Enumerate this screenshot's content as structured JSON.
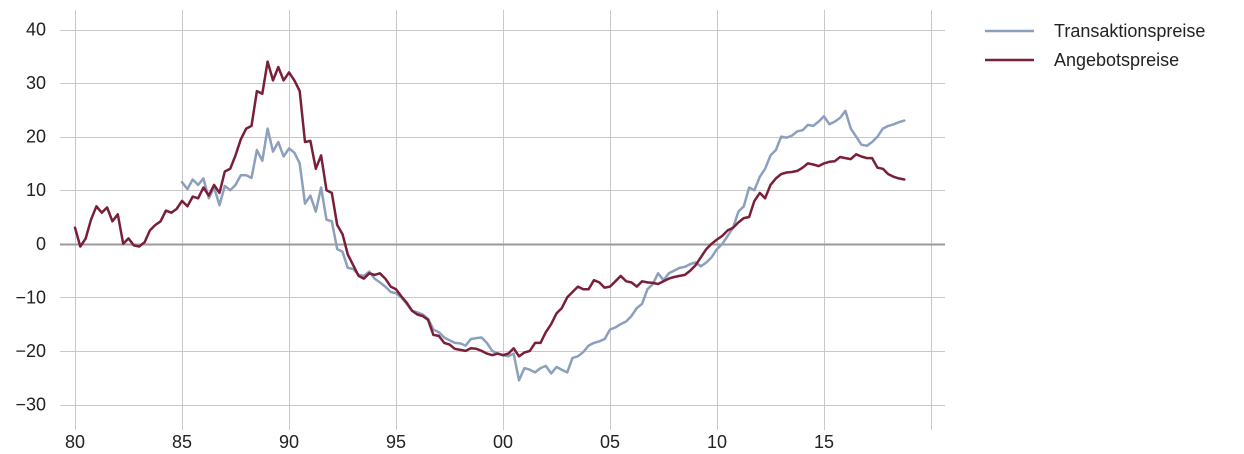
{
  "chart_data": {
    "type": "line",
    "xlabel": "",
    "ylabel": "",
    "xlim": [
      1980,
      2020
    ],
    "ylim": [
      -32,
      42
    ],
    "x_ticks": [
      1980,
      1985,
      1990,
      1995,
      2000,
      2005,
      2010,
      2015
    ],
    "x_tick_labels": [
      "80",
      "85",
      "90",
      "95",
      "00",
      "05",
      "10",
      "15"
    ],
    "y_ticks": [
      40,
      30,
      20,
      10,
      0,
      -10,
      -20,
      -30
    ],
    "y_tick_labels": [
      "40",
      "30",
      "20",
      "10",
      "0",
      "−10",
      "−20",
      "−30"
    ],
    "grid": true,
    "legend_position": "top-right",
    "series": [
      {
        "name": "Transaktionspreise",
        "color": "#8c9fbd",
        "points": [
          [
            1985.0,
            11.5
          ],
          [
            1985.25,
            10.2
          ],
          [
            1985.5,
            12.0
          ],
          [
            1985.75,
            11.0
          ],
          [
            1986.0,
            12.2
          ],
          [
            1986.25,
            8.5
          ],
          [
            1986.5,
            10.5
          ],
          [
            1986.75,
            7.2
          ],
          [
            1987.0,
            10.8
          ],
          [
            1987.25,
            10.0
          ],
          [
            1987.5,
            11.0
          ],
          [
            1987.75,
            12.8
          ],
          [
            1988.0,
            12.8
          ],
          [
            1988.25,
            12.3
          ],
          [
            1988.5,
            17.5
          ],
          [
            1988.75,
            15.5
          ],
          [
            1989.0,
            21.5
          ],
          [
            1989.25,
            17.2
          ],
          [
            1989.5,
            19.0
          ],
          [
            1989.75,
            16.3
          ],
          [
            1990.0,
            17.8
          ],
          [
            1990.25,
            17.0
          ],
          [
            1990.5,
            15.0
          ],
          [
            1990.75,
            7.5
          ],
          [
            1991.0,
            9.0
          ],
          [
            1991.25,
            6.0
          ],
          [
            1991.5,
            10.5
          ],
          [
            1991.75,
            4.5
          ],
          [
            1992.0,
            4.2
          ],
          [
            1992.25,
            -1.0
          ],
          [
            1992.5,
            -1.5
          ],
          [
            1992.75,
            -4.5
          ],
          [
            1993.0,
            -4.7
          ],
          [
            1993.25,
            -5.8
          ],
          [
            1993.5,
            -6.0
          ],
          [
            1993.75,
            -5.2
          ],
          [
            1994.0,
            -6.5
          ],
          [
            1994.25,
            -7.2
          ],
          [
            1994.5,
            -8.0
          ],
          [
            1994.75,
            -9.0
          ],
          [
            1995.0,
            -9.2
          ],
          [
            1995.25,
            -10.0
          ],
          [
            1995.5,
            -11.2
          ],
          [
            1995.75,
            -12.5
          ],
          [
            1996.0,
            -12.8
          ],
          [
            1996.25,
            -13.2
          ],
          [
            1996.5,
            -14.0
          ],
          [
            1996.75,
            -16.0
          ],
          [
            1997.0,
            -16.5
          ],
          [
            1997.25,
            -17.5
          ],
          [
            1997.5,
            -18.0
          ],
          [
            1997.75,
            -18.5
          ],
          [
            1998.0,
            -18.6
          ],
          [
            1998.25,
            -19.0
          ],
          [
            1998.5,
            -17.8
          ],
          [
            1998.75,
            -17.6
          ],
          [
            1999.0,
            -17.5
          ],
          [
            1999.25,
            -18.5
          ],
          [
            1999.5,
            -20.0
          ],
          [
            1999.75,
            -20.5
          ],
          [
            2000.0,
            -20.8
          ],
          [
            2000.25,
            -21.0
          ],
          [
            2000.5,
            -20.5
          ],
          [
            2000.75,
            -25.5
          ],
          [
            2001.0,
            -23.2
          ],
          [
            2001.25,
            -23.5
          ],
          [
            2001.5,
            -24.0
          ],
          [
            2001.75,
            -23.2
          ],
          [
            2002.0,
            -22.8
          ],
          [
            2002.25,
            -24.2
          ],
          [
            2002.5,
            -23.0
          ],
          [
            2002.75,
            -23.5
          ],
          [
            2003.0,
            -24.0
          ],
          [
            2003.25,
            -21.3
          ],
          [
            2003.5,
            -21.0
          ],
          [
            2003.75,
            -20.2
          ],
          [
            2004.0,
            -19.0
          ],
          [
            2004.25,
            -18.5
          ],
          [
            2004.5,
            -18.2
          ],
          [
            2004.75,
            -17.8
          ],
          [
            2005.0,
            -16.0
          ],
          [
            2005.25,
            -15.6
          ],
          [
            2005.5,
            -15.0
          ],
          [
            2005.75,
            -14.5
          ],
          [
            2006.0,
            -13.5
          ],
          [
            2006.25,
            -12.0
          ],
          [
            2006.5,
            -11.2
          ],
          [
            2006.75,
            -8.5
          ],
          [
            2007.0,
            -7.5
          ],
          [
            2007.25,
            -5.5
          ],
          [
            2007.5,
            -6.8
          ],
          [
            2007.75,
            -5.5
          ],
          [
            2008.0,
            -5.0
          ],
          [
            2008.25,
            -4.5
          ],
          [
            2008.5,
            -4.3
          ],
          [
            2008.75,
            -3.8
          ],
          [
            2009.0,
            -3.5
          ],
          [
            2009.25,
            -4.2
          ],
          [
            2009.5,
            -3.5
          ],
          [
            2009.75,
            -2.5
          ],
          [
            2010.0,
            -1.0
          ],
          [
            2010.25,
            0.0
          ],
          [
            2010.5,
            1.5
          ],
          [
            2010.75,
            3.0
          ],
          [
            2011.0,
            6.0
          ],
          [
            2011.25,
            7.0
          ],
          [
            2011.5,
            10.5
          ],
          [
            2011.75,
            10.0
          ],
          [
            2012.0,
            12.5
          ],
          [
            2012.25,
            14.0
          ],
          [
            2012.5,
            16.5
          ],
          [
            2012.75,
            17.5
          ],
          [
            2013.0,
            20.0
          ],
          [
            2013.25,
            19.8
          ],
          [
            2013.5,
            20.2
          ],
          [
            2013.75,
            21.0
          ],
          [
            2014.0,
            21.2
          ],
          [
            2014.25,
            22.2
          ],
          [
            2014.5,
            22.0
          ],
          [
            2014.75,
            22.8
          ],
          [
            2015.0,
            23.8
          ],
          [
            2015.25,
            22.3
          ],
          [
            2015.5,
            22.8
          ],
          [
            2015.75,
            23.5
          ],
          [
            2016.0,
            24.8
          ],
          [
            2016.25,
            21.5
          ],
          [
            2016.5,
            20.0
          ],
          [
            2016.75,
            18.5
          ],
          [
            2017.0,
            18.3
          ],
          [
            2017.25,
            19.0
          ],
          [
            2017.5,
            20.0
          ],
          [
            2017.75,
            21.5
          ],
          [
            2018.0,
            22.0
          ],
          [
            2018.25,
            22.3
          ],
          [
            2018.5,
            22.7
          ],
          [
            2018.75,
            23.0
          ]
        ]
      },
      {
        "name": "Angebotspreise",
        "color": "#7a1f38",
        "points": [
          [
            1980.0,
            3.0
          ],
          [
            1980.25,
            -0.5
          ],
          [
            1980.5,
            1.0
          ],
          [
            1980.75,
            4.5
          ],
          [
            1981.0,
            7.0
          ],
          [
            1981.25,
            5.8
          ],
          [
            1981.5,
            6.8
          ],
          [
            1981.75,
            4.2
          ],
          [
            1982.0,
            5.5
          ],
          [
            1982.25,
            0.0
          ],
          [
            1982.5,
            1.0
          ],
          [
            1982.75,
            -0.3
          ],
          [
            1983.0,
            -0.5
          ],
          [
            1983.25,
            0.3
          ],
          [
            1983.5,
            2.5
          ],
          [
            1983.75,
            3.5
          ],
          [
            1984.0,
            4.2
          ],
          [
            1984.25,
            6.2
          ],
          [
            1984.5,
            5.8
          ],
          [
            1984.75,
            6.5
          ],
          [
            1985.0,
            8.0
          ],
          [
            1985.25,
            7.0
          ],
          [
            1985.5,
            8.8
          ],
          [
            1985.75,
            8.5
          ],
          [
            1986.0,
            10.5
          ],
          [
            1986.25,
            9.0
          ],
          [
            1986.5,
            11.0
          ],
          [
            1986.75,
            9.5
          ],
          [
            1987.0,
            13.5
          ],
          [
            1987.25,
            14.0
          ],
          [
            1987.5,
            16.5
          ],
          [
            1987.75,
            19.5
          ],
          [
            1988.0,
            21.5
          ],
          [
            1988.25,
            22.0
          ],
          [
            1988.5,
            28.5
          ],
          [
            1988.75,
            28.0
          ],
          [
            1989.0,
            34.0
          ],
          [
            1989.25,
            30.5
          ],
          [
            1989.5,
            33.0
          ],
          [
            1989.75,
            30.5
          ],
          [
            1990.0,
            32.0
          ],
          [
            1990.25,
            30.5
          ],
          [
            1990.5,
            28.5
          ],
          [
            1990.75,
            19.0
          ],
          [
            1991.0,
            19.2
          ],
          [
            1991.25,
            14.0
          ],
          [
            1991.5,
            16.5
          ],
          [
            1991.75,
            10.0
          ],
          [
            1992.0,
            9.5
          ],
          [
            1992.25,
            3.5
          ],
          [
            1992.5,
            1.8
          ],
          [
            1992.75,
            -2.0
          ],
          [
            1993.0,
            -4.0
          ],
          [
            1993.25,
            -6.0
          ],
          [
            1993.5,
            -6.5
          ],
          [
            1993.75,
            -5.5
          ],
          [
            1994.0,
            -5.8
          ],
          [
            1994.25,
            -5.5
          ],
          [
            1994.5,
            -6.5
          ],
          [
            1994.75,
            -8.0
          ],
          [
            1995.0,
            -8.5
          ],
          [
            1995.25,
            -9.8
          ],
          [
            1995.5,
            -11.0
          ],
          [
            1995.75,
            -12.5
          ],
          [
            1996.0,
            -13.2
          ],
          [
            1996.25,
            -13.5
          ],
          [
            1996.5,
            -14.2
          ],
          [
            1996.75,
            -17.0
          ],
          [
            1997.0,
            -17.2
          ],
          [
            1997.25,
            -18.5
          ],
          [
            1997.5,
            -18.8
          ],
          [
            1997.75,
            -19.6
          ],
          [
            1998.0,
            -19.8
          ],
          [
            1998.25,
            -20.0
          ],
          [
            1998.5,
            -19.5
          ],
          [
            1998.75,
            -19.6
          ],
          [
            1999.0,
            -20.0
          ],
          [
            1999.25,
            -20.5
          ],
          [
            1999.5,
            -20.8
          ],
          [
            1999.75,
            -20.5
          ],
          [
            2000.0,
            -20.8
          ],
          [
            2000.25,
            -20.5
          ],
          [
            2000.5,
            -19.5
          ],
          [
            2000.75,
            -21.0
          ],
          [
            2001.0,
            -20.3
          ],
          [
            2001.25,
            -20.0
          ],
          [
            2001.5,
            -18.5
          ],
          [
            2001.75,
            -18.5
          ],
          [
            2002.0,
            -16.5
          ],
          [
            2002.25,
            -15.0
          ],
          [
            2002.5,
            -13.0
          ],
          [
            2002.75,
            -12.0
          ],
          [
            2003.0,
            -10.0
          ],
          [
            2003.25,
            -9.0
          ],
          [
            2003.5,
            -8.0
          ],
          [
            2003.75,
            -8.5
          ],
          [
            2004.0,
            -8.5
          ],
          [
            2004.25,
            -6.8
          ],
          [
            2004.5,
            -7.2
          ],
          [
            2004.75,
            -8.2
          ],
          [
            2005.0,
            -8.0
          ],
          [
            2005.25,
            -7.0
          ],
          [
            2005.5,
            -6.0
          ],
          [
            2005.75,
            -7.0
          ],
          [
            2006.0,
            -7.2
          ],
          [
            2006.25,
            -8.0
          ],
          [
            2006.5,
            -7.0
          ],
          [
            2006.75,
            -7.2
          ],
          [
            2007.0,
            -7.3
          ],
          [
            2007.25,
            -7.5
          ],
          [
            2007.5,
            -7.0
          ],
          [
            2007.75,
            -6.5
          ],
          [
            2008.0,
            -6.2
          ],
          [
            2008.25,
            -6.0
          ],
          [
            2008.5,
            -5.8
          ],
          [
            2008.75,
            -5.0
          ],
          [
            2009.0,
            -4.0
          ],
          [
            2009.25,
            -2.5
          ],
          [
            2009.5,
            -1.0
          ],
          [
            2009.75,
            0.0
          ],
          [
            2010.0,
            0.8
          ],
          [
            2010.25,
            1.5
          ],
          [
            2010.5,
            2.5
          ],
          [
            2010.75,
            3.0
          ],
          [
            2011.0,
            4.0
          ],
          [
            2011.25,
            4.8
          ],
          [
            2011.5,
            5.0
          ],
          [
            2011.75,
            8.0
          ],
          [
            2012.0,
            9.5
          ],
          [
            2012.25,
            8.5
          ],
          [
            2012.5,
            11.0
          ],
          [
            2012.75,
            12.2
          ],
          [
            2013.0,
            13.0
          ],
          [
            2013.25,
            13.3
          ],
          [
            2013.5,
            13.4
          ],
          [
            2013.75,
            13.6
          ],
          [
            2014.0,
            14.2
          ],
          [
            2014.25,
            15.0
          ],
          [
            2014.5,
            14.8
          ],
          [
            2014.75,
            14.5
          ],
          [
            2015.0,
            15.0
          ],
          [
            2015.25,
            15.3
          ],
          [
            2015.5,
            15.4
          ],
          [
            2015.75,
            16.2
          ],
          [
            2016.0,
            16.0
          ],
          [
            2016.25,
            15.8
          ],
          [
            2016.5,
            16.7
          ],
          [
            2016.75,
            16.3
          ],
          [
            2017.0,
            16.0
          ],
          [
            2017.25,
            16.0
          ],
          [
            2017.5,
            14.2
          ],
          [
            2017.75,
            14.0
          ],
          [
            2018.0,
            13.0
          ],
          [
            2018.25,
            12.5
          ],
          [
            2018.5,
            12.2
          ],
          [
            2018.75,
            12.0
          ]
        ]
      }
    ]
  }
}
